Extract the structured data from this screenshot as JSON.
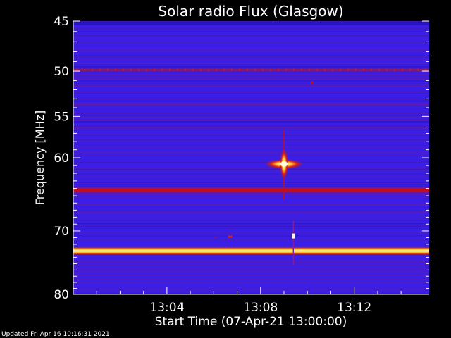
{
  "chart_data": {
    "type": "heatmap",
    "title": "Solar radio Flux (Glasgow)",
    "ylabel": "Frequency [MHz]",
    "xlabel": "Start Time (07-Apr-21 13:00:00)",
    "y_axis": {
      "scale": "log",
      "range": [
        45,
        80
      ],
      "reversed": true,
      "ticks": [
        "45",
        "50",
        "55",
        "60",
        "70",
        "80"
      ],
      "tick_values": [
        45,
        50,
        55,
        60,
        70,
        80
      ]
    },
    "x_axis": {
      "range_minutes": [
        0,
        15.2
      ],
      "ticks": [
        "13:04",
        "13:08",
        "13:12"
      ],
      "tick_values_minutes": [
        4,
        8,
        12
      ]
    },
    "background_color": "#3a1ee6",
    "bright_lines": [
      {
        "freq_mhz": 73.0,
        "intensity": "very high",
        "color": "#ffff80"
      },
      {
        "freq_mhz": 64.2,
        "intensity": "high",
        "color": "#c01020"
      },
      {
        "freq_mhz": 49.9,
        "intensity": "moderate",
        "color": "#a01a40"
      }
    ],
    "bursts": [
      {
        "time_min": 9.0,
        "freq_mhz": 60.8,
        "intensity": "very high"
      },
      {
        "time_min": 9.4,
        "freq_mhz": 70.8,
        "intensity": "high"
      },
      {
        "time_min": 6.7,
        "freq_mhz": 70.9,
        "intensity": "moderate"
      }
    ]
  },
  "footer": {
    "updated": "Updated Fri Apr 16 10:16:31 2021"
  }
}
